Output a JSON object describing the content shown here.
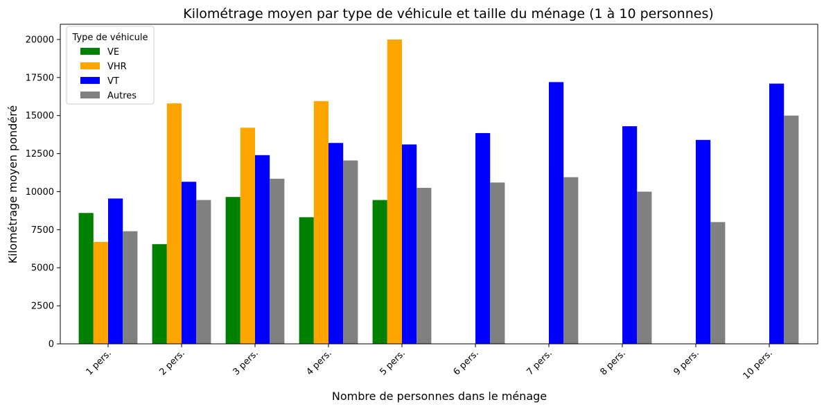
{
  "chart_data": {
    "type": "bar",
    "title": "Kilométrage moyen par type de véhicule et taille du ménage (1 à 10 personnes)",
    "xlabel": "Nombre de personnes dans le ménage",
    "ylabel": "Kilométrage moyen pondéré",
    "categories": [
      "1 pers.",
      "2 pers.",
      "3 pers.",
      "4 pers.",
      "5 pers.",
      "6 pers.",
      "7 pers.",
      "8 pers.",
      "9 pers.",
      "10 pers."
    ],
    "ylim": [
      0,
      21000
    ],
    "yticks": [
      0,
      2500,
      5000,
      7500,
      10000,
      12500,
      15000,
      17500,
      20000
    ],
    "grid": false,
    "legend": {
      "title": "Type de véhicule",
      "position": "top-left"
    },
    "series": [
      {
        "name": "VE",
        "color": "#008000",
        "values": [
          8600,
          6550,
          9650,
          8320,
          9450,
          null,
          null,
          null,
          null,
          null
        ]
      },
      {
        "name": "VHR",
        "color": "#FFA500",
        "values": [
          6700,
          15800,
          14200,
          15950,
          20000,
          null,
          null,
          null,
          null,
          null
        ]
      },
      {
        "name": "VT",
        "color": "#0000FF",
        "values": [
          9550,
          10650,
          12400,
          13200,
          13100,
          13850,
          17200,
          14300,
          13400,
          17100
        ]
      },
      {
        "name": "Autres",
        "color": "#808080",
        "values": [
          7400,
          9450,
          10850,
          12050,
          10250,
          10600,
          10950,
          10000,
          8000,
          15000
        ]
      }
    ]
  }
}
